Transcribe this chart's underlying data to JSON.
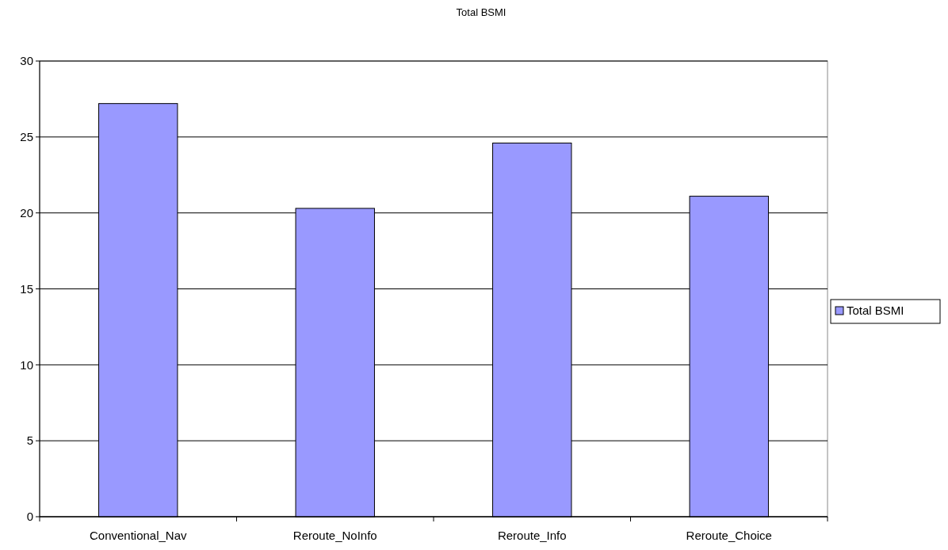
{
  "chart_data": {
    "type": "bar",
    "title": "Total BSMI",
    "categories": [
      "Conventional_Nav",
      "Reroute_NoInfo",
      "Reroute_Info",
      "Reroute_Choice"
    ],
    "series": [
      {
        "name": "Total BSMI",
        "color": "#9999ff",
        "values": [
          27.2,
          20.3,
          24.6,
          21.1
        ]
      }
    ],
    "ylim": [
      0,
      30
    ],
    "yticks": [
      0,
      5,
      10,
      15,
      20,
      25,
      30
    ],
    "grid": "y",
    "legend": "right"
  }
}
